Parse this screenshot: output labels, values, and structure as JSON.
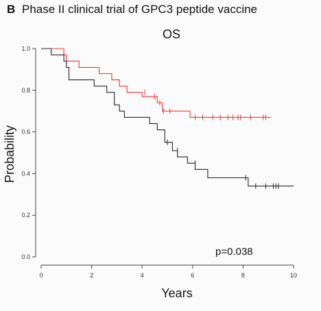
{
  "figure": {
    "panel_letter": "B",
    "header_title": "Phase II clinical trial of GPC3 peptide vaccine"
  },
  "chart_data": {
    "type": "line",
    "chart_style": "kaplan-meier step",
    "title": "OS",
    "xlabel": "Years",
    "ylabel": "Probability",
    "xlim": [
      0,
      10
    ],
    "ylim": [
      0,
      1.0
    ],
    "x_ticks": [
      "0",
      "2",
      "4",
      "6",
      "8",
      "10"
    ],
    "y_ticks": [
      "0.0",
      "0.2",
      "0.4",
      "0.6",
      "0.8",
      "1.0"
    ],
    "annotation": "p=0.038",
    "grid": false,
    "series": [
      {
        "color": "#e8353a",
        "steps": [
          [
            0,
            1.0
          ],
          [
            0.9,
            1.0
          ],
          [
            0.9,
            0.97
          ],
          [
            1.0,
            0.97
          ],
          [
            1.0,
            0.94
          ],
          [
            1.5,
            0.94
          ],
          [
            1.5,
            0.91
          ],
          [
            2.3,
            0.91
          ],
          [
            2.3,
            0.88
          ],
          [
            2.8,
            0.88
          ],
          [
            2.8,
            0.85
          ],
          [
            3.1,
            0.85
          ],
          [
            3.1,
            0.82
          ],
          [
            3.4,
            0.82
          ],
          [
            3.4,
            0.79
          ],
          [
            4.0,
            0.79
          ],
          [
            4.0,
            0.77
          ],
          [
            4.6,
            0.77
          ],
          [
            4.6,
            0.74
          ],
          [
            4.8,
            0.74
          ],
          [
            4.8,
            0.7
          ],
          [
            5.9,
            0.7
          ],
          [
            5.9,
            0.67
          ],
          [
            9.1,
            0.67
          ]
        ],
        "censored": [
          [
            4.1,
            0.79
          ],
          [
            4.5,
            0.77
          ],
          [
            4.7,
            0.74
          ],
          [
            4.85,
            0.7
          ],
          [
            5.1,
            0.7
          ],
          [
            6.1,
            0.67
          ],
          [
            6.4,
            0.67
          ],
          [
            6.8,
            0.67
          ],
          [
            7.1,
            0.67
          ],
          [
            7.4,
            0.67
          ],
          [
            7.6,
            0.67
          ],
          [
            7.8,
            0.67
          ],
          [
            7.9,
            0.67
          ],
          [
            8.3,
            0.67
          ],
          [
            8.8,
            0.67
          ],
          [
            8.9,
            0.67
          ]
        ]
      },
      {
        "color": "#222222",
        "steps": [
          [
            0,
            1.0
          ],
          [
            0.4,
            1.0
          ],
          [
            0.4,
            0.97
          ],
          [
            0.9,
            0.97
          ],
          [
            0.9,
            0.94
          ],
          [
            1.0,
            0.94
          ],
          [
            1.0,
            0.91
          ],
          [
            1.1,
            0.91
          ],
          [
            1.1,
            0.85
          ],
          [
            2.1,
            0.85
          ],
          [
            2.1,
            0.82
          ],
          [
            2.6,
            0.82
          ],
          [
            2.6,
            0.79
          ],
          [
            2.9,
            0.79
          ],
          [
            2.9,
            0.73
          ],
          [
            3.1,
            0.73
          ],
          [
            3.1,
            0.7
          ],
          [
            3.3,
            0.7
          ],
          [
            3.3,
            0.67
          ],
          [
            4.3,
            0.67
          ],
          [
            4.3,
            0.64
          ],
          [
            4.6,
            0.64
          ],
          [
            4.6,
            0.61
          ],
          [
            4.9,
            0.61
          ],
          [
            4.9,
            0.55
          ],
          [
            5.2,
            0.55
          ],
          [
            5.2,
            0.51
          ],
          [
            5.4,
            0.51
          ],
          [
            5.4,
            0.48
          ],
          [
            5.8,
            0.48
          ],
          [
            5.8,
            0.45
          ],
          [
            6.1,
            0.45
          ],
          [
            6.1,
            0.42
          ],
          [
            6.6,
            0.42
          ],
          [
            6.6,
            0.38
          ],
          [
            8.2,
            0.38
          ],
          [
            8.2,
            0.34
          ],
          [
            10.0,
            0.34
          ]
        ],
        "censored": [
          [
            5.0,
            0.55
          ],
          [
            5.4,
            0.51
          ],
          [
            6.1,
            0.45
          ],
          [
            8.1,
            0.38
          ],
          [
            8.5,
            0.34
          ],
          [
            8.9,
            0.34
          ],
          [
            9.2,
            0.34
          ],
          [
            9.3,
            0.34
          ],
          [
            9.4,
            0.34
          ]
        ]
      }
    ]
  }
}
